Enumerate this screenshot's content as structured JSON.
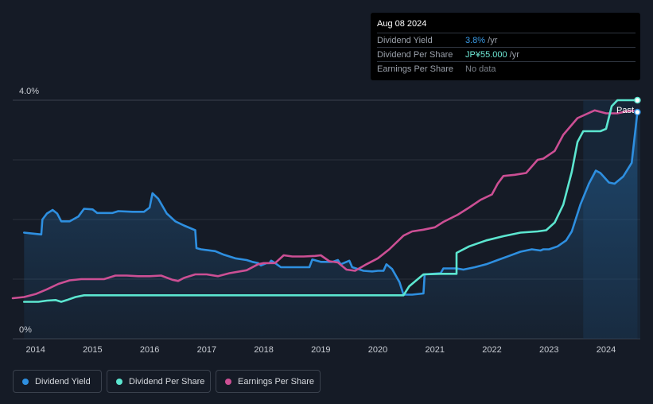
{
  "tooltip": {
    "date": "Aug 08 2024",
    "rows": [
      {
        "label": "Dividend Yield",
        "value": "3.8%",
        "unit": " /yr"
      },
      {
        "label": "Dividend Per Share",
        "value": "JP¥55.000",
        "unit": " /yr"
      },
      {
        "label": "Earnings Per Share",
        "value": "No data",
        "unit": ""
      }
    ]
  },
  "past_label": "Past",
  "legend": [
    {
      "label": "Dividend Yield",
      "color": "#2e8fe0"
    },
    {
      "label": "Dividend Per Share",
      "color": "#5ce6d0"
    },
    {
      "label": "Earnings Per Share",
      "color": "#cc4f94"
    }
  ],
  "colors": {
    "background": "#151b26",
    "yield": "#2e8fe0",
    "dps": "#5ce6d0",
    "eps": "#cc4f94",
    "grid": "#2a313c",
    "forecast_shade": "#1b3550"
  },
  "chart_data": {
    "type": "line",
    "x_range": [
      2013.6,
      2024.6
    ],
    "x_ticks": [
      "2014",
      "2015",
      "2016",
      "2017",
      "2018",
      "2019",
      "2020",
      "2021",
      "2022",
      "2023",
      "2024"
    ],
    "y_range": [
      0,
      4.0
    ],
    "y_tick_labels": [
      {
        "value": 4.0,
        "label": "4.0%"
      },
      {
        "value": 0,
        "label": "0%"
      }
    ],
    "past_region_start": 2023.6,
    "series": [
      {
        "name": "Dividend Yield",
        "unit": "%",
        "area": true,
        "points": [
          [
            2013.8,
            1.78
          ],
          [
            2013.9,
            1.77
          ],
          [
            2014.1,
            1.75
          ],
          [
            2014.12,
            2.0
          ],
          [
            2014.2,
            2.1
          ],
          [
            2014.3,
            2.16
          ],
          [
            2014.38,
            2.1
          ],
          [
            2014.45,
            1.97
          ],
          [
            2014.6,
            1.97
          ],
          [
            2014.75,
            2.05
          ],
          [
            2014.85,
            2.18
          ],
          [
            2015.0,
            2.17
          ],
          [
            2015.08,
            2.11
          ],
          [
            2015.35,
            2.11
          ],
          [
            2015.45,
            2.14
          ],
          [
            2015.7,
            2.13
          ],
          [
            2015.9,
            2.13
          ],
          [
            2016.0,
            2.2
          ],
          [
            2016.05,
            2.44
          ],
          [
            2016.15,
            2.35
          ],
          [
            2016.3,
            2.1
          ],
          [
            2016.45,
            1.97
          ],
          [
            2016.6,
            1.9
          ],
          [
            2016.8,
            1.82
          ],
          [
            2016.82,
            1.52
          ],
          [
            2016.9,
            1.5
          ],
          [
            2017.15,
            1.47
          ],
          [
            2017.3,
            1.41
          ],
          [
            2017.5,
            1.35
          ],
          [
            2017.7,
            1.32
          ],
          [
            2017.8,
            1.29
          ],
          [
            2017.9,
            1.27
          ],
          [
            2017.95,
            1.23
          ],
          [
            2018.05,
            1.27
          ],
          [
            2018.1,
            1.27
          ],
          [
            2018.13,
            1.31
          ],
          [
            2018.2,
            1.27
          ],
          [
            2018.3,
            1.2
          ],
          [
            2018.5,
            1.2
          ],
          [
            2018.8,
            1.2
          ],
          [
            2018.85,
            1.33
          ],
          [
            2019.0,
            1.29
          ],
          [
            2019.2,
            1.29
          ],
          [
            2019.3,
            1.32
          ],
          [
            2019.35,
            1.25
          ],
          [
            2019.5,
            1.31
          ],
          [
            2019.55,
            1.2
          ],
          [
            2019.75,
            1.14
          ],
          [
            2019.9,
            1.13
          ],
          [
            2020.0,
            1.14
          ],
          [
            2020.1,
            1.14
          ],
          [
            2020.15,
            1.25
          ],
          [
            2020.25,
            1.17
          ],
          [
            2020.38,
            0.95
          ],
          [
            2020.45,
            0.74
          ],
          [
            2020.5,
            0.74
          ],
          [
            2020.6,
            0.74
          ],
          [
            2020.8,
            0.76
          ],
          [
            2020.82,
            1.08
          ],
          [
            2021.1,
            1.1
          ],
          [
            2021.15,
            1.18
          ],
          [
            2021.3,
            1.18
          ],
          [
            2021.38,
            1.18
          ],
          [
            2021.5,
            1.16
          ],
          [
            2021.7,
            1.2
          ],
          [
            2021.9,
            1.25
          ],
          [
            2022.1,
            1.32
          ],
          [
            2022.3,
            1.39
          ],
          [
            2022.5,
            1.46
          ],
          [
            2022.7,
            1.5
          ],
          [
            2022.85,
            1.48
          ],
          [
            2022.9,
            1.5
          ],
          [
            2023.0,
            1.5
          ],
          [
            2023.15,
            1.55
          ],
          [
            2023.3,
            1.65
          ],
          [
            2023.4,
            1.8
          ],
          [
            2023.55,
            2.25
          ],
          [
            2023.7,
            2.6
          ],
          [
            2023.82,
            2.82
          ],
          [
            2023.9,
            2.78
          ],
          [
            2024.05,
            2.62
          ],
          [
            2024.15,
            2.6
          ],
          [
            2024.3,
            2.72
          ],
          [
            2024.45,
            2.95
          ],
          [
            2024.55,
            3.8
          ]
        ]
      },
      {
        "name": "Dividend Per Share",
        "unit": "JP¥",
        "points": [
          [
            2013.8,
            0.62
          ],
          [
            2014.05,
            0.62
          ],
          [
            2014.2,
            0.64
          ],
          [
            2014.35,
            0.65
          ],
          [
            2014.45,
            0.62
          ],
          [
            2014.55,
            0.65
          ],
          [
            2014.7,
            0.7
          ],
          [
            2014.85,
            0.73
          ],
          [
            2015.0,
            0.73
          ],
          [
            2016.0,
            0.73
          ],
          [
            2017.0,
            0.73
          ],
          [
            2018.0,
            0.73
          ],
          [
            2019.0,
            0.73
          ],
          [
            2020.0,
            0.73
          ],
          [
            2020.45,
            0.73
          ],
          [
            2020.55,
            0.88
          ],
          [
            2020.8,
            1.08
          ],
          [
            2021.1,
            1.09
          ],
          [
            2021.38,
            1.09
          ],
          [
            2021.38,
            1.44
          ],
          [
            2021.6,
            1.55
          ],
          [
            2021.9,
            1.65
          ],
          [
            2022.2,
            1.72
          ],
          [
            2022.5,
            1.78
          ],
          [
            2022.8,
            1.8
          ],
          [
            2022.95,
            1.82
          ],
          [
            2023.1,
            1.95
          ],
          [
            2023.25,
            2.25
          ],
          [
            2023.4,
            2.8
          ],
          [
            2023.5,
            3.3
          ],
          [
            2023.6,
            3.48
          ],
          [
            2023.75,
            3.48
          ],
          [
            2023.9,
            3.48
          ],
          [
            2024.0,
            3.52
          ],
          [
            2024.1,
            3.9
          ],
          [
            2024.2,
            4.0
          ],
          [
            2024.55,
            4.0
          ]
        ]
      },
      {
        "name": "Earnings Per Share",
        "unit": "JP¥",
        "points": [
          [
            2013.6,
            0.68
          ],
          [
            2013.8,
            0.7
          ],
          [
            2014.0,
            0.75
          ],
          [
            2014.2,
            0.83
          ],
          [
            2014.4,
            0.92
          ],
          [
            2014.6,
            0.98
          ],
          [
            2014.8,
            1.0
          ],
          [
            2015.0,
            1.0
          ],
          [
            2015.2,
            1.0
          ],
          [
            2015.4,
            1.06
          ],
          [
            2015.6,
            1.06
          ],
          [
            2015.8,
            1.05
          ],
          [
            2016.0,
            1.05
          ],
          [
            2016.2,
            1.06
          ],
          [
            2016.4,
            0.99
          ],
          [
            2016.5,
            0.97
          ],
          [
            2016.6,
            1.02
          ],
          [
            2016.8,
            1.08
          ],
          [
            2017.0,
            1.08
          ],
          [
            2017.2,
            1.05
          ],
          [
            2017.4,
            1.1
          ],
          [
            2017.7,
            1.15
          ],
          [
            2017.9,
            1.25
          ],
          [
            2018.0,
            1.27
          ],
          [
            2018.2,
            1.27
          ],
          [
            2018.35,
            1.4
          ],
          [
            2018.5,
            1.38
          ],
          [
            2018.7,
            1.38
          ],
          [
            2018.9,
            1.39
          ],
          [
            2019.0,
            1.4
          ],
          [
            2019.15,
            1.3
          ],
          [
            2019.3,
            1.28
          ],
          [
            2019.45,
            1.16
          ],
          [
            2019.6,
            1.14
          ],
          [
            2019.8,
            1.25
          ],
          [
            2020.0,
            1.35
          ],
          [
            2020.2,
            1.5
          ],
          [
            2020.45,
            1.73
          ],
          [
            2020.6,
            1.8
          ],
          [
            2020.8,
            1.83
          ],
          [
            2021.0,
            1.87
          ],
          [
            2021.15,
            1.96
          ],
          [
            2021.4,
            2.08
          ],
          [
            2021.6,
            2.2
          ],
          [
            2021.8,
            2.33
          ],
          [
            2022.0,
            2.42
          ],
          [
            2022.1,
            2.6
          ],
          [
            2022.2,
            2.73
          ],
          [
            2022.4,
            2.75
          ],
          [
            2022.6,
            2.78
          ],
          [
            2022.8,
            3.0
          ],
          [
            2022.9,
            3.02
          ],
          [
            2023.1,
            3.15
          ],
          [
            2023.25,
            3.42
          ],
          [
            2023.5,
            3.7
          ],
          [
            2023.8,
            3.83
          ],
          [
            2024.0,
            3.78
          ],
          [
            2024.2,
            3.78
          ],
          [
            2024.4,
            3.82
          ],
          [
            2024.55,
            3.82
          ]
        ]
      }
    ]
  }
}
